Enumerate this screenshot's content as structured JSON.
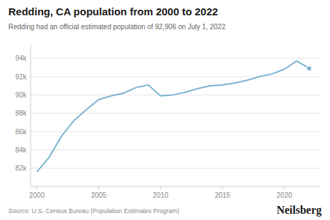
{
  "chart_data": {
    "type": "line",
    "title": "Redding, CA population from 2000 to 2022",
    "subtitle": "Redding had an official estimated population of 92,906 on July 1, 2022",
    "annotations": [
      "Source: U.S. Census Bureau (Population Estimates Program)",
      "Neilsberg"
    ],
    "x": [
      2000,
      2001,
      2002,
      2003,
      2004,
      2005,
      2006,
      2007,
      2008,
      2009,
      2010,
      2011,
      2012,
      2013,
      2014,
      2015,
      2016,
      2017,
      2018,
      2019,
      2020,
      2021,
      2022
    ],
    "values": [
      81600,
      83200,
      85500,
      87200,
      88400,
      89500,
      89900,
      90200,
      90800,
      91100,
      89900,
      90000,
      90300,
      90700,
      91000,
      91100,
      91300,
      91600,
      92000,
      92300,
      92800,
      93700,
      92906
    ],
    "color": "#7ab3d0",
    "xlim": [
      1999.5,
      2022.9
    ],
    "xticks": [
      2000,
      2005,
      2010,
      2015,
      2020
    ],
    "ylim": [
      80000,
      95500
    ],
    "yticks": [
      {
        "value": 82000,
        "label": "82k"
      },
      {
        "value": 84000,
        "label": "84k"
      },
      {
        "value": 86000,
        "label": "86k"
      },
      {
        "value": 88000,
        "label": "88k"
      },
      {
        "value": 90000,
        "label": "90k"
      },
      {
        "value": 92000,
        "label": "92k"
      },
      {
        "value": 94000,
        "label": "94k"
      }
    ],
    "grid": true
  }
}
